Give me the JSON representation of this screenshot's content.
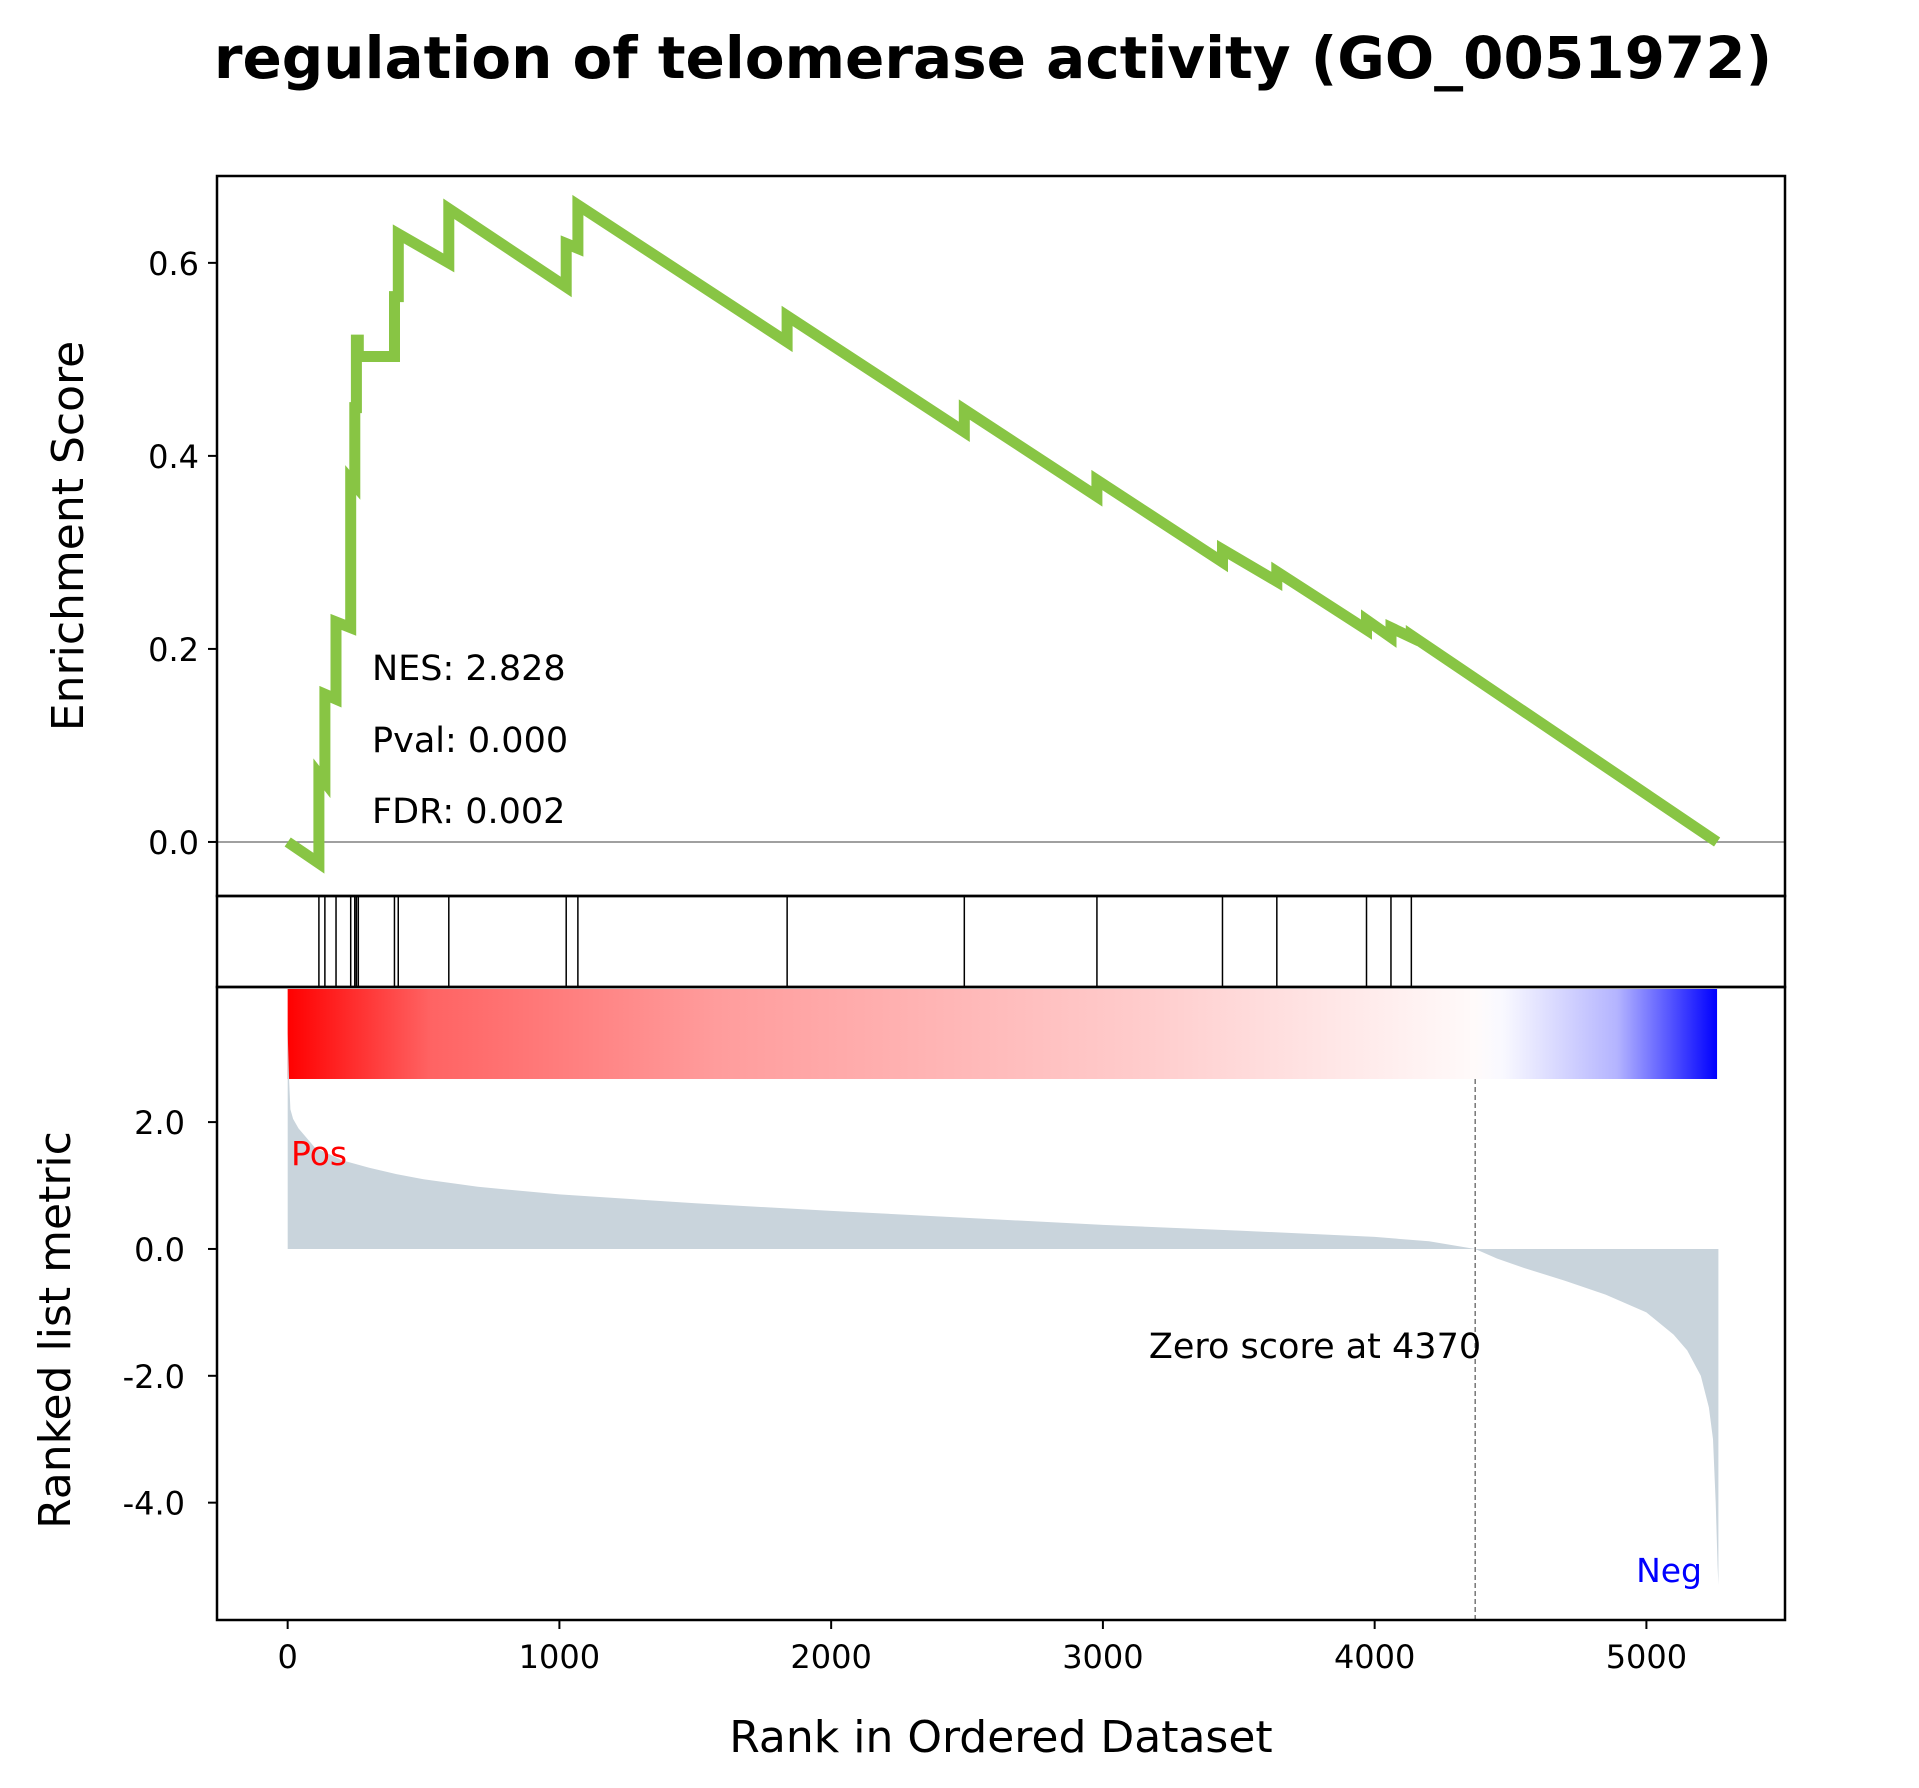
{
  "chart_data": {
    "title": "regulation of telomerase activity (GO_0051972)",
    "xlabel": "Rank in Ordered Dataset",
    "xlim": [
      -260,
      5510
    ],
    "xticks": [
      0,
      1000,
      2000,
      3000,
      4000,
      5000
    ],
    "xtick_labels": [
      "0",
      "1000",
      "2000",
      "3000",
      "4000",
      "5000"
    ],
    "es_panel": {
      "type": "line",
      "ylabel": "Enrichment Score",
      "ylim": [
        -0.056,
        0.69
      ],
      "yticks": [
        0.0,
        0.2,
        0.4,
        0.6
      ],
      "ytick_labels": [
        "0.0",
        "0.2",
        "0.4",
        "0.6"
      ],
      "line_color": "#88c544",
      "zero_line": true,
      "series": [
        {
          "x": [
            0,
            115,
            115,
            137,
            137,
            178,
            178,
            232,
            232,
            247,
            247,
            253,
            253,
            260,
            260,
            393,
            393,
            407,
            407,
            593,
            593,
            1025,
            1025,
            1068,
            1068,
            1838,
            1838,
            2490,
            2490,
            2978,
            2978,
            3440,
            3440,
            3640,
            3640,
            3970,
            3970,
            4060,
            4060,
            4135,
            4135,
            5260
          ],
          "y": [
            0.0,
            -0.022,
            0.07,
            0.062,
            0.153,
            0.148,
            0.228,
            0.222,
            0.375,
            0.37,
            0.45,
            0.45,
            0.52,
            0.52,
            0.503,
            0.503,
            0.565,
            0.565,
            0.63,
            0.6,
            0.656,
            0.575,
            0.62,
            0.615,
            0.66,
            0.518,
            0.545,
            0.425,
            0.448,
            0.358,
            0.375,
            0.29,
            0.303,
            0.27,
            0.28,
            0.22,
            0.23,
            0.212,
            0.222,
            0.212,
            0.214,
            0.0
          ]
        }
      ],
      "annotations": [
        {
          "label": "NES: 2.828"
        },
        {
          "label": "Pval: 0.000"
        },
        {
          "label": "FDR: 0.002"
        }
      ]
    },
    "hits_panel": {
      "type": "hits",
      "positions": [
        115,
        137,
        178,
        232,
        247,
        253,
        260,
        393,
        407,
        593,
        1025,
        1068,
        1838,
        2490,
        2978,
        3440,
        3640,
        3970,
        4060,
        4135
      ]
    },
    "colorbar": {
      "x_range": [
        0,
        5260
      ],
      "stops": [
        {
          "offset": 0.0,
          "color": "#ff0000"
        },
        {
          "offset": 0.1,
          "color": "#ff6363"
        },
        {
          "offset": 0.3,
          "color": "#ff9c9c"
        },
        {
          "offset": 0.6,
          "color": "#ffcccc"
        },
        {
          "offset": 0.83,
          "color": "#fffafa"
        },
        {
          "offset": 0.85,
          "color": "#f9f9ff"
        },
        {
          "offset": 0.93,
          "color": "#b4b4ff"
        },
        {
          "offset": 1.0,
          "color": "#0000ff"
        }
      ]
    },
    "rank_panel": {
      "type": "area",
      "ylabel": "Ranked list metric",
      "ylim": [
        -5.85,
        4.13
      ],
      "yticks": [
        2.0,
        0.0,
        -2.0,
        -4.0
      ],
      "ytick_labels": [
        "2.0",
        "0.0",
        "-2.0",
        "-4.0"
      ],
      "fill_color": "#c9d4dc",
      "series": [
        {
          "x": [
            0,
            5,
            10,
            20,
            40,
            70,
            100,
            150,
            200,
            300,
            400,
            500,
            700,
            1000,
            1500,
            2000,
            2500,
            3000,
            3500,
            4000,
            4200,
            4370,
            4450,
            4550,
            4700,
            4850,
            5000,
            5100,
            5150,
            5200,
            5230,
            5245,
            5255,
            5262,
            5265
          ],
          "y": [
            3.4,
            2.7,
            2.2,
            2.05,
            1.9,
            1.75,
            1.6,
            1.5,
            1.4,
            1.28,
            1.18,
            1.1,
            0.98,
            0.86,
            0.72,
            0.6,
            0.49,
            0.38,
            0.29,
            0.19,
            0.12,
            0.0,
            -0.15,
            -0.3,
            -0.5,
            -0.72,
            -1.0,
            -1.35,
            -1.6,
            -2.0,
            -2.5,
            -3.0,
            -4.0,
            -5.0,
            -5.3
          ]
        }
      ],
      "zero_score_x": 4370,
      "zero_score_label": "Zero score at 4370",
      "pos_label": "Pos",
      "neg_label": "Neg",
      "pos_color": "#ff0000",
      "neg_color": "#0000ff"
    }
  }
}
